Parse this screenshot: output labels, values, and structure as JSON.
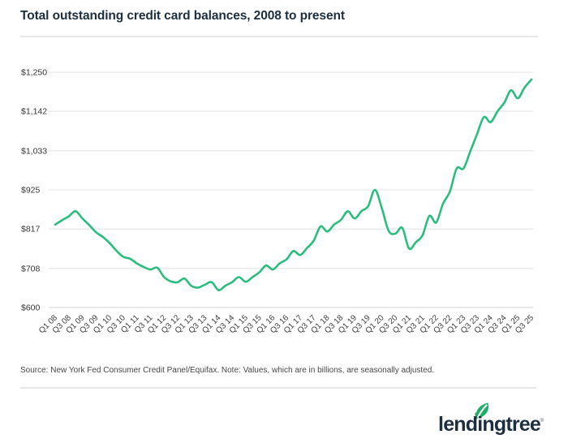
{
  "header": {
    "title": "Total outstanding credit card balances, 2008 to present"
  },
  "chart_data": {
    "type": "line",
    "title": "Total outstanding credit card balances, 2008 to present",
    "unit": "billions of dollars, seasonally adjusted",
    "line_color": "#2abe7e",
    "grid": true,
    "legend_position": "none",
    "y_axis": {
      "tick_labels": [
        "$1,250",
        "$1,142",
        "$1,033",
        "$925",
        "$817",
        "$708",
        "$600"
      ],
      "tick_values": [
        1250,
        1142,
        1033,
        925,
        817,
        708,
        600
      ],
      "range": [
        600,
        1250
      ]
    },
    "x_axis": {
      "tick_labels": [
        "Q1 08",
        "Q3 08",
        "Q1 09",
        "Q3 09",
        "Q1 10",
        "Q3 10",
        "Q1 11",
        "Q3 11",
        "Q1 12",
        "Q3 12",
        "Q1 13",
        "Q3 13",
        "Q1 14",
        "Q3 14",
        "Q1 15",
        "Q3 15",
        "Q1 16",
        "Q3 16",
        "Q1 17",
        "Q3 17",
        "Q1 18",
        "Q3 18",
        "Q1 19",
        "Q3 19",
        "Q1 20",
        "Q3 20",
        "Q1 21",
        "Q3 21",
        "Q1 22",
        "Q3 22",
        "Q1 23",
        "Q3 23",
        "Q1 24",
        "Q3 24",
        "Q1 25",
        "Q3 25"
      ],
      "tick_step": 2
    },
    "x": [
      "Q1 2008",
      "Q2 2008",
      "Q3 2008",
      "Q4 2008",
      "Q1 2009",
      "Q2 2009",
      "Q3 2009",
      "Q4 2009",
      "Q1 2010",
      "Q2 2010",
      "Q3 2010",
      "Q4 2010",
      "Q1 2011",
      "Q2 2011",
      "Q3 2011",
      "Q4 2011",
      "Q1 2012",
      "Q2 2012",
      "Q3 2012",
      "Q4 2012",
      "Q1 2013",
      "Q2 2013",
      "Q3 2013",
      "Q4 2013",
      "Q1 2014",
      "Q2 2014",
      "Q3 2014",
      "Q4 2014",
      "Q1 2015",
      "Q2 2015",
      "Q3 2015",
      "Q4 2015",
      "Q1 2016",
      "Q2 2016",
      "Q3 2016",
      "Q4 2016",
      "Q1 2017",
      "Q2 2017",
      "Q3 2017",
      "Q4 2017",
      "Q1 2018",
      "Q2 2018",
      "Q3 2018",
      "Q4 2018",
      "Q1 2019",
      "Q2 2019",
      "Q3 2019",
      "Q4 2019",
      "Q1 2020",
      "Q2 2020",
      "Q3 2020",
      "Q4 2020",
      "Q1 2021",
      "Q2 2021",
      "Q3 2021",
      "Q4 2021",
      "Q1 2022",
      "Q2 2022",
      "Q3 2022",
      "Q4 2022",
      "Q1 2023",
      "Q2 2023",
      "Q3 2023",
      "Q4 2023",
      "Q1 2024",
      "Q2 2024",
      "Q3 2024",
      "Q4 2024",
      "Q1 2025",
      "Q2 2025",
      "Q3 2025"
    ],
    "series": [
      {
        "name": "Total outstanding credit card balances ($B)",
        "values": [
          829,
          841,
          852,
          866,
          846,
          828,
          808,
          795,
          778,
          757,
          740,
          735,
          722,
          712,
          705,
          710,
          684,
          672,
          670,
          680,
          660,
          655,
          663,
          670,
          648,
          660,
          670,
          684,
          671,
          684,
          697,
          716,
          705,
          722,
          733,
          756,
          745,
          764,
          785,
          824,
          810,
          829,
          842,
          866,
          846,
          866,
          880,
          925,
          875,
          812,
          804,
          820,
          763,
          780,
          800,
          853,
          835,
          887,
          920,
          984,
          984,
          1031,
          1079,
          1126,
          1112,
          1142,
          1166,
          1200,
          1178,
          1208,
          1230
        ]
      }
    ]
  },
  "footer": {
    "source_note": "Source: New York Fed Consumer Credit Panel/Equifax. Note: Values, which are in billions, are seasonally adjusted.",
    "logo_text": "lendingtree",
    "trademark": "®",
    "logo_colors": {
      "wordmark": "#1d2f3e",
      "leaf": "#1fae6a"
    }
  },
  "colors": {
    "background": "#ffffff",
    "title": "#1d2f3e",
    "gridline": "#e9eaea",
    "axis_label": "#3d3d3d",
    "line": "#2abe7e",
    "divider": "#e7e8e8"
  }
}
